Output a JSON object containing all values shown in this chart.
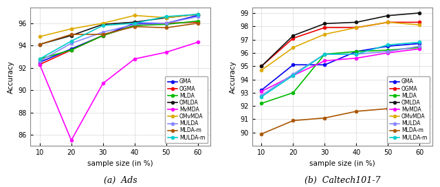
{
  "x": [
    10,
    20,
    30,
    40,
    50,
    60
  ],
  "ads": {
    "GMA": [
      92.5,
      93.7,
      94.9,
      96.0,
      96.0,
      96.7
    ],
    "OGMA": [
      92.3,
      93.6,
      94.9,
      95.8,
      96.0,
      96.1
    ],
    "MLDA": [
      92.8,
      93.6,
      94.9,
      95.8,
      95.9,
      96.2
    ],
    "OMLDA": [
      94.1,
      94.9,
      95.9,
      96.1,
      96.5,
      96.8
    ],
    "MvMDA": [
      92.3,
      85.5,
      90.6,
      92.8,
      93.4,
      94.3
    ],
    "OMvMDA": [
      94.8,
      95.5,
      96.0,
      96.7,
      96.5,
      96.8
    ],
    "MULDA": [
      92.6,
      94.2,
      95.2,
      95.9,
      96.0,
      96.6
    ],
    "MLDA-m": [
      94.1,
      95.0,
      95.0,
      95.7,
      95.6,
      96.0
    ],
    "MULDA-m": [
      92.8,
      94.4,
      95.8,
      96.0,
      96.6,
      96.8
    ]
  },
  "caltech": {
    "GMA": [
      93.2,
      95.1,
      95.1,
      96.1,
      96.5,
      96.7
    ],
    "OGMA": [
      95.0,
      97.1,
      97.9,
      97.9,
      98.3,
      98.3
    ],
    "MLDA": [
      92.2,
      93.0,
      95.9,
      96.1,
      96.2,
      96.4
    ],
    "OMLDA": [
      95.0,
      97.3,
      98.2,
      98.3,
      98.8,
      99.0
    ],
    "MvMDA": [
      93.1,
      94.3,
      95.4,
      95.6,
      96.0,
      96.3
    ],
    "OMvMDA": [
      94.7,
      96.4,
      97.4,
      97.9,
      98.3,
      98.1
    ],
    "MULDA": [
      92.8,
      94.4,
      95.9,
      95.9,
      96.1,
      96.5
    ],
    "MLDA-m": [
      89.9,
      90.9,
      91.1,
      91.6,
      91.8,
      92.4
    ],
    "MULDA-m": [
      92.7,
      94.3,
      95.9,
      95.9,
      96.6,
      96.8
    ]
  },
  "colors": {
    "GMA": "#0000ee",
    "OGMA": "#ee0000",
    "MLDA": "#00bb00",
    "OMLDA": "#111111",
    "MvMDA": "#ff00ff",
    "OMvMDA": "#ddaa00",
    "MULDA": "#8888ff",
    "MLDA-m": "#aa5500",
    "MULDA-m": "#00cccc"
  },
  "ads_ylim": [
    85.0,
    97.4
  ],
  "ads_yticks": [
    86,
    88,
    90,
    92,
    94,
    96
  ],
  "caltech_ylim": [
    89.0,
    99.4
  ],
  "caltech_yticks": [
    90,
    91,
    92,
    93,
    94,
    95,
    96,
    97,
    98,
    99
  ],
  "xlabel": "sample size (in %)",
  "ylabel": "Accuracy",
  "title_a": "(a)  Ads",
  "title_b": "(b)  Caltech101-7"
}
